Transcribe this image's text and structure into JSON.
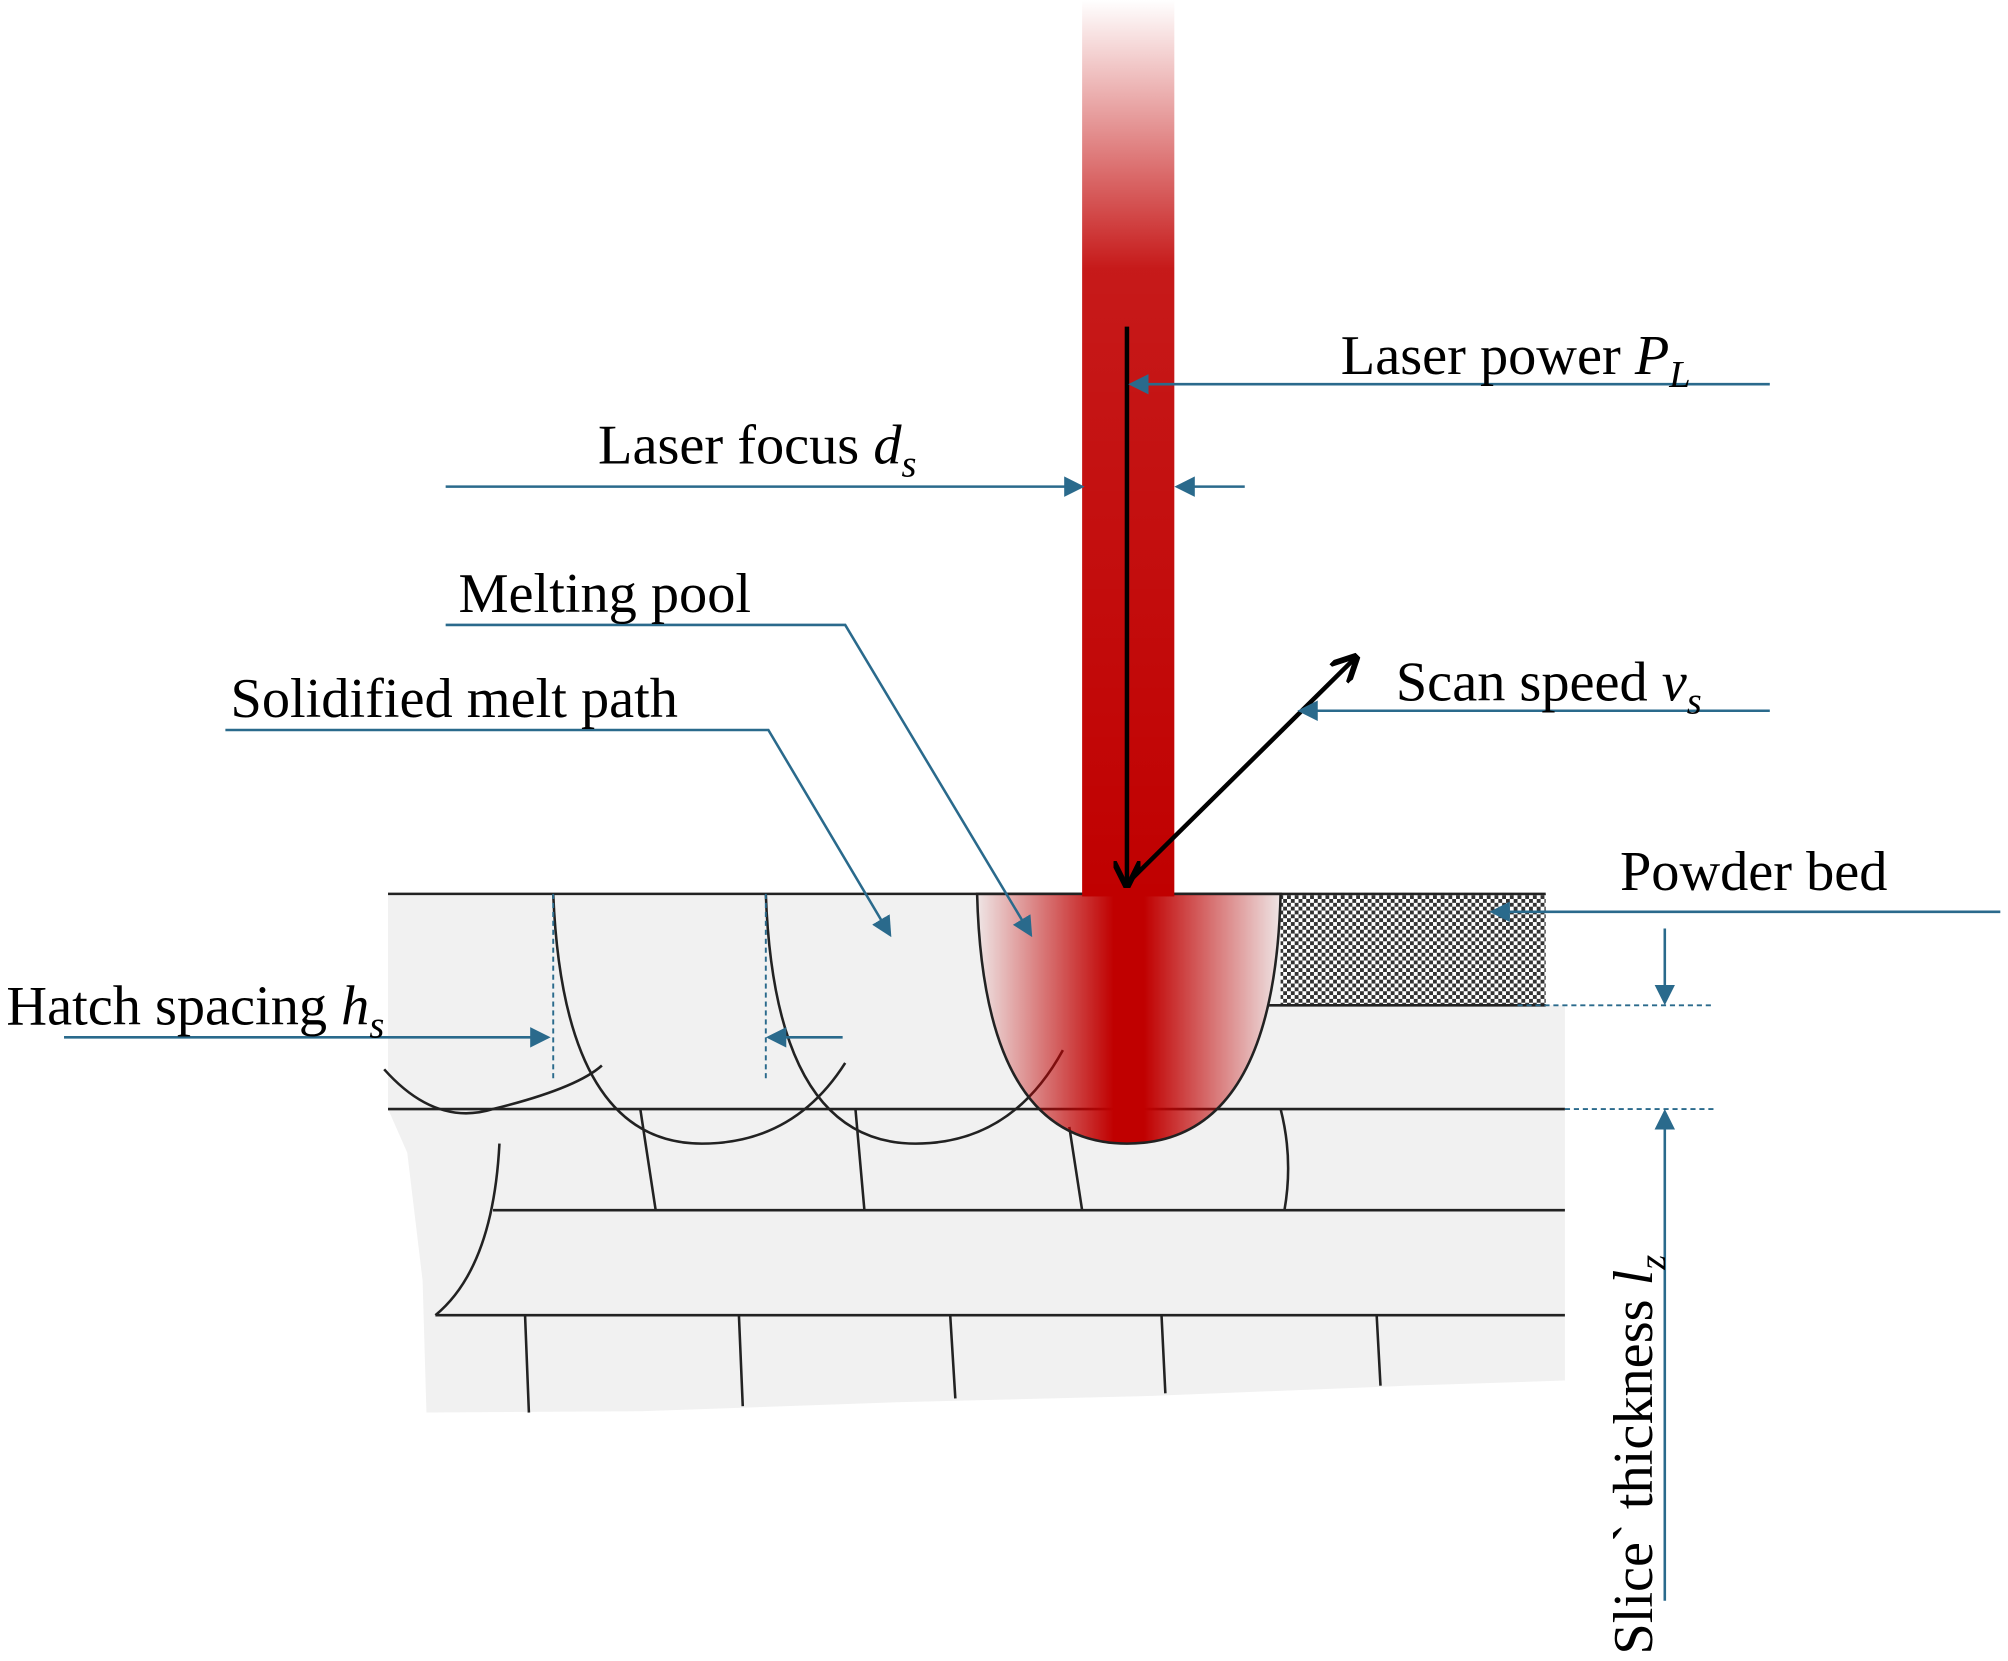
{
  "labels": {
    "laser_power": {
      "text": "Laser power",
      "symbol": "P",
      "subscript": "L"
    },
    "laser_focus": {
      "text": "Laser focus",
      "symbol": "d",
      "subscript": "s"
    },
    "melting_pool": {
      "text": "Melting pool"
    },
    "solidified_path": {
      "text": "Solidified melt path"
    },
    "scan_speed": {
      "text": "Scan speed",
      "symbol": "v",
      "subscript": "s"
    },
    "powder_bed": {
      "text": "Powder bed"
    },
    "hatch_spacing": {
      "text": "Hatch spacing",
      "symbol": "h",
      "subscript": "s"
    },
    "slice_thickness": {
      "text": "Slice` thickness",
      "symbol": "l",
      "subscript": "z"
    }
  }
}
